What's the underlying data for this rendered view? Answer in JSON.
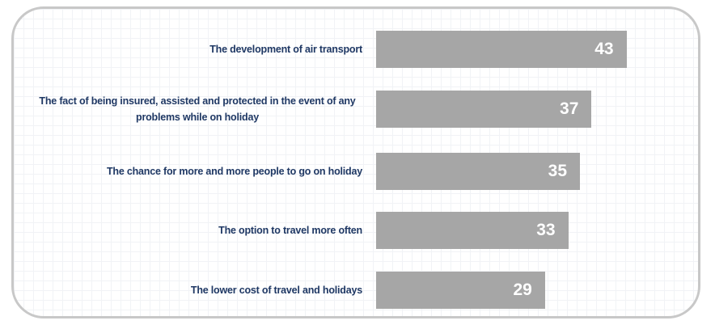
{
  "chart_data": {
    "type": "bar",
    "orientation": "horizontal",
    "color": "#a6a6a6",
    "categories": [
      "The development of air transport",
      "The fact of being insured, assisted and protected in the event of any problems while on holiday",
      "The chance for more and more people to go on holiday",
      "The option to travel more often",
      "The lower cost of travel and holidays"
    ],
    "values": [
      43,
      37,
      35,
      33,
      29
    ]
  }
}
